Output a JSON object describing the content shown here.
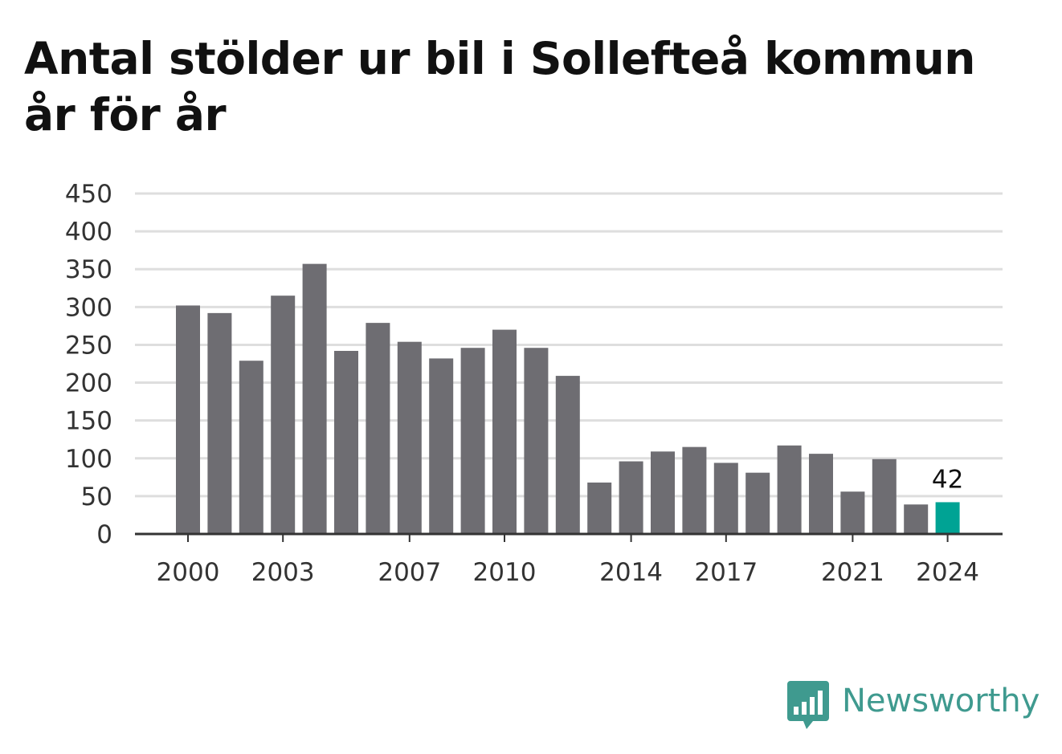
{
  "title_line1": "Antal stölder ur bil i Sollefteå kommun",
  "title_line2": "år för år",
  "brand": {
    "name": "Newsworthy",
    "icon": "newsworthy-logo-icon",
    "color": "#3f9a8f"
  },
  "colors": {
    "bar": "#6e6d72",
    "highlight": "#00a394",
    "grid": "#dedede",
    "axis": "#333333"
  },
  "chart_data": {
    "type": "bar",
    "categories": [
      2000,
      2001,
      2002,
      2003,
      2004,
      2005,
      2006,
      2007,
      2008,
      2009,
      2010,
      2011,
      2012,
      2013,
      2014,
      2015,
      2016,
      2017,
      2018,
      2019,
      2020,
      2021,
      2022,
      2023,
      2024
    ],
    "values": [
      302,
      292,
      229,
      315,
      357,
      242,
      279,
      254,
      232,
      246,
      270,
      246,
      209,
      68,
      96,
      109,
      115,
      94,
      81,
      117,
      106,
      56,
      99,
      39,
      42
    ],
    "x_tick_labels": [
      "2000",
      "2003",
      "2007",
      "2010",
      "2014",
      "2017",
      "2021",
      "2024"
    ],
    "y_ticks": [
      0,
      50,
      100,
      150,
      200,
      250,
      300,
      350,
      400,
      450
    ],
    "ylim": [
      0,
      450
    ],
    "highlight": {
      "category": 2024,
      "label": "42"
    },
    "grid": true,
    "legend": "none",
    "xlabel": "",
    "ylabel": ""
  }
}
